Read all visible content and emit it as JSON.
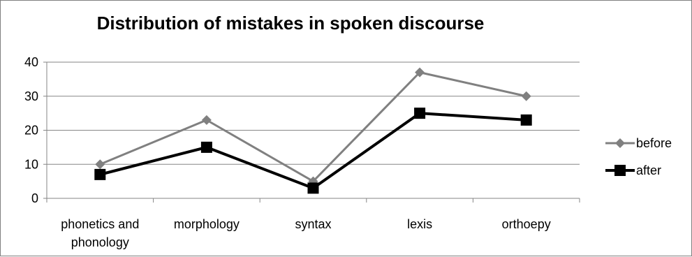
{
  "chart_data": {
    "type": "line",
    "title": "Distribution of mistakes in spoken discourse",
    "xlabel": "",
    "ylabel": "",
    "categories": [
      [
        "phonetics and",
        "phonology"
      ],
      [
        "morphology"
      ],
      [
        "syntax"
      ],
      [
        "lexis"
      ],
      [
        "orthoepy"
      ]
    ],
    "ylim": [
      0,
      40
    ],
    "yticks": [
      0,
      10,
      20,
      30,
      40
    ],
    "grid": true,
    "legend_position": "right",
    "series": [
      {
        "name": "before",
        "values": [
          10,
          23,
          5,
          37,
          30
        ],
        "color": "#808080",
        "marker": "diamond"
      },
      {
        "name": "after",
        "values": [
          7,
          15,
          3,
          25,
          23
        ],
        "color": "#000000",
        "marker": "square"
      }
    ]
  }
}
